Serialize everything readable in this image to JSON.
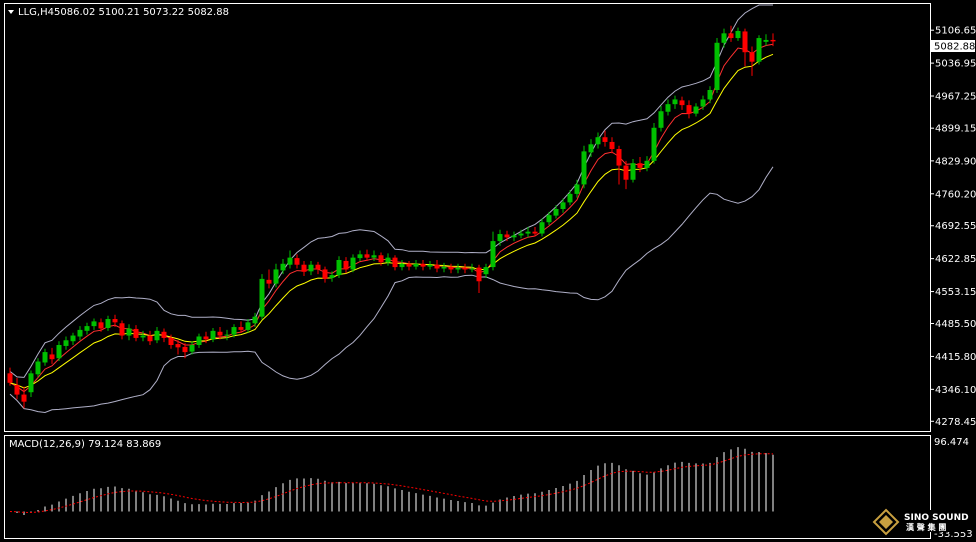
{
  "header": {
    "symbol": "LLG,H4",
    "ohlc": "5086.02 5100.21 5073.22 5082.88"
  },
  "macd_header": "MACD(12,26,9) 79.124 83.869",
  "current_price_label": "5082.88",
  "logo": {
    "line1": "SINO SOUND",
    "line2": "漢 聲 集 團"
  },
  "colors": {
    "background": "#000000",
    "frame": "#ffffff",
    "bull": "#00c000",
    "bear": "#ff0000",
    "ma_fast": "#ff3030",
    "ma_slow": "#ffff00",
    "bands": "#b0b0c8",
    "macd_hist": "#ffffff",
    "macd_signal": "#ff0000"
  },
  "chart_data": [
    {
      "type": "candlestick",
      "title": "LLG,H4",
      "ylim": [
        4260,
        5160
      ],
      "y_ticks": [
        "5106.65",
        "5036.95",
        "4967.25",
        "4899.15",
        "4829.90",
        "4760.20",
        "4692.55",
        "4622.85",
        "4553.15",
        "4485.50",
        "4415.80",
        "4346.10",
        "4278.45"
      ],
      "candles": [
        [
          4380,
          4360,
          4392,
          4354
        ],
        [
          4355,
          4335,
          4370,
          4325
        ],
        [
          4335,
          4320,
          4352,
          4306
        ],
        [
          4340,
          4380,
          4386,
          4330
        ],
        [
          4378,
          4405,
          4412,
          4372
        ],
        [
          4403,
          4425,
          4432,
          4396
        ],
        [
          4420,
          4410,
          4434,
          4400
        ],
        [
          4412,
          4440,
          4448,
          4406
        ],
        [
          4438,
          4450,
          4458,
          4430
        ],
        [
          4448,
          4460,
          4466,
          4440
        ],
        [
          4458,
          4472,
          4480,
          4450
        ],
        [
          4470,
          4480,
          4487,
          4462
        ],
        [
          4480,
          4490,
          4496,
          4472
        ],
        [
          4488,
          4475,
          4496,
          4468
        ],
        [
          4476,
          4495,
          4502,
          4470
        ],
        [
          4495,
          4488,
          4504,
          4478
        ],
        [
          4486,
          4460,
          4492,
          4452
        ],
        [
          4460,
          4475,
          4484,
          4450
        ],
        [
          4474,
          4455,
          4482,
          4448
        ],
        [
          4456,
          4460,
          4470,
          4448
        ],
        [
          4460,
          4448,
          4470,
          4440
        ],
        [
          4450,
          4470,
          4478,
          4444
        ],
        [
          4468,
          4455,
          4475,
          4446
        ],
        [
          4455,
          4440,
          4462,
          4432
        ],
        [
          4442,
          4435,
          4450,
          4420
        ],
        [
          4436,
          4425,
          4444,
          4412
        ],
        [
          4426,
          4440,
          4448,
          4420
        ],
        [
          4440,
          4458,
          4464,
          4434
        ],
        [
          4458,
          4452,
          4468,
          4444
        ],
        [
          4452,
          4470,
          4476,
          4446
        ],
        [
          4468,
          4460,
          4478,
          4452
        ],
        [
          4460,
          4462,
          4472,
          4450
        ],
        [
          4462,
          4478,
          4484,
          4456
        ],
        [
          4478,
          4472,
          4490,
          4466
        ],
        [
          4472,
          4488,
          4495,
          4466
        ],
        [
          4486,
          4500,
          4508,
          4478
        ],
        [
          4500,
          4580,
          4590,
          4494
        ],
        [
          4578,
          4570,
          4600,
          4560
        ],
        [
          4570,
          4600,
          4612,
          4562
        ],
        [
          4598,
          4612,
          4622,
          4590
        ],
        [
          4610,
          4625,
          4640,
          4602
        ],
        [
          4624,
          4610,
          4632,
          4602
        ],
        [
          4610,
          4595,
          4618,
          4586
        ],
        [
          4596,
          4610,
          4618,
          4588
        ],
        [
          4610,
          4600,
          4616,
          4590
        ],
        [
          4600,
          4580,
          4606,
          4572
        ],
        [
          4582,
          4588,
          4596,
          4574
        ],
        [
          4588,
          4620,
          4628,
          4582
        ],
        [
          4618,
          4600,
          4626,
          4592
        ],
        [
          4600,
          4625,
          4632,
          4594
        ],
        [
          4624,
          4632,
          4640,
          4618
        ],
        [
          4632,
          4625,
          4642,
          4618
        ],
        [
          4625,
          4630,
          4640,
          4618
        ],
        [
          4630,
          4615,
          4636,
          4608
        ],
        [
          4615,
          4625,
          4634,
          4608
        ],
        [
          4625,
          4605,
          4630,
          4598
        ],
        [
          4605,
          4612,
          4620,
          4598
        ],
        [
          4612,
          4606,
          4618,
          4598
        ],
        [
          4606,
          4612,
          4620,
          4600
        ],
        [
          4612,
          4606,
          4620,
          4598
        ],
        [
          4606,
          4610,
          4618,
          4600
        ],
        [
          4610,
          4602,
          4620,
          4594
        ],
        [
          4602,
          4606,
          4614,
          4594
        ],
        [
          4606,
          4600,
          4612,
          4592
        ],
        [
          4600,
          4604,
          4612,
          4592
        ],
        [
          4604,
          4600,
          4612,
          4592
        ],
        [
          4600,
          4602,
          4612,
          4594
        ],
        [
          4604,
          4575,
          4610,
          4550
        ],
        [
          4590,
          4605,
          4612,
          4582
        ],
        [
          4605,
          4660,
          4680,
          4598
        ],
        [
          4660,
          4675,
          4684,
          4650
        ],
        [
          4674,
          4668,
          4682,
          4660
        ],
        [
          4668,
          4672,
          4680,
          4660
        ],
        [
          4672,
          4676,
          4684,
          4666
        ],
        [
          4676,
          4680,
          4690,
          4668
        ],
        [
          4680,
          4676,
          4690,
          4670
        ],
        [
          4676,
          4700,
          4708,
          4670
        ],
        [
          4700,
          4715,
          4722,
          4694
        ],
        [
          4714,
          4728,
          4736,
          4708
        ],
        [
          4728,
          4742,
          4750,
          4720
        ],
        [
          4742,
          4760,
          4768,
          4736
        ],
        [
          4760,
          4780,
          4790,
          4752
        ],
        [
          4780,
          4850,
          4862,
          4772
        ],
        [
          4848,
          4865,
          4876,
          4838
        ],
        [
          4865,
          4880,
          4890,
          4856
        ],
        [
          4880,
          4870,
          4894,
          4860
        ],
        [
          4870,
          4855,
          4880,
          4846
        ],
        [
          4855,
          4820,
          4862,
          4780
        ],
        [
          4820,
          4790,
          4830,
          4770
        ],
        [
          4790,
          4825,
          4834,
          4784
        ],
        [
          4825,
          4815,
          4838,
          4806
        ],
        [
          4815,
          4830,
          4840,
          4808
        ],
        [
          4830,
          4900,
          4910,
          4824
        ],
        [
          4900,
          4935,
          4946,
          4892
        ],
        [
          4934,
          4950,
          4960,
          4926
        ],
        [
          4950,
          4960,
          4968,
          4940
        ],
        [
          4958,
          4948,
          4966,
          4938
        ],
        [
          4948,
          4930,
          4958,
          4920
        ],
        [
          4930,
          4945,
          4952,
          4924
        ],
        [
          4945,
          4960,
          4968,
          4938
        ],
        [
          4960,
          4980,
          4988,
          4952
        ],
        [
          4980,
          5080,
          5090,
          4974
        ],
        [
          5080,
          5100,
          5110,
          5070
        ],
        [
          5100,
          5090,
          5116,
          5082
        ],
        [
          5090,
          5105,
          5112,
          5084
        ],
        [
          5104,
          5060,
          5110,
          5030
        ],
        [
          5060,
          5040,
          5072,
          5010
        ],
        [
          5040,
          5090,
          5096,
          5034
        ],
        [
          5082,
          5086,
          5098,
          5074
        ],
        [
          5086,
          5083,
          5100,
          5073
        ]
      ],
      "macd": {
        "ylim": [
          -33.553,
          96.474
        ],
        "top_label": "96.474",
        "bottom_label": "-33.553"
      }
    }
  ]
}
